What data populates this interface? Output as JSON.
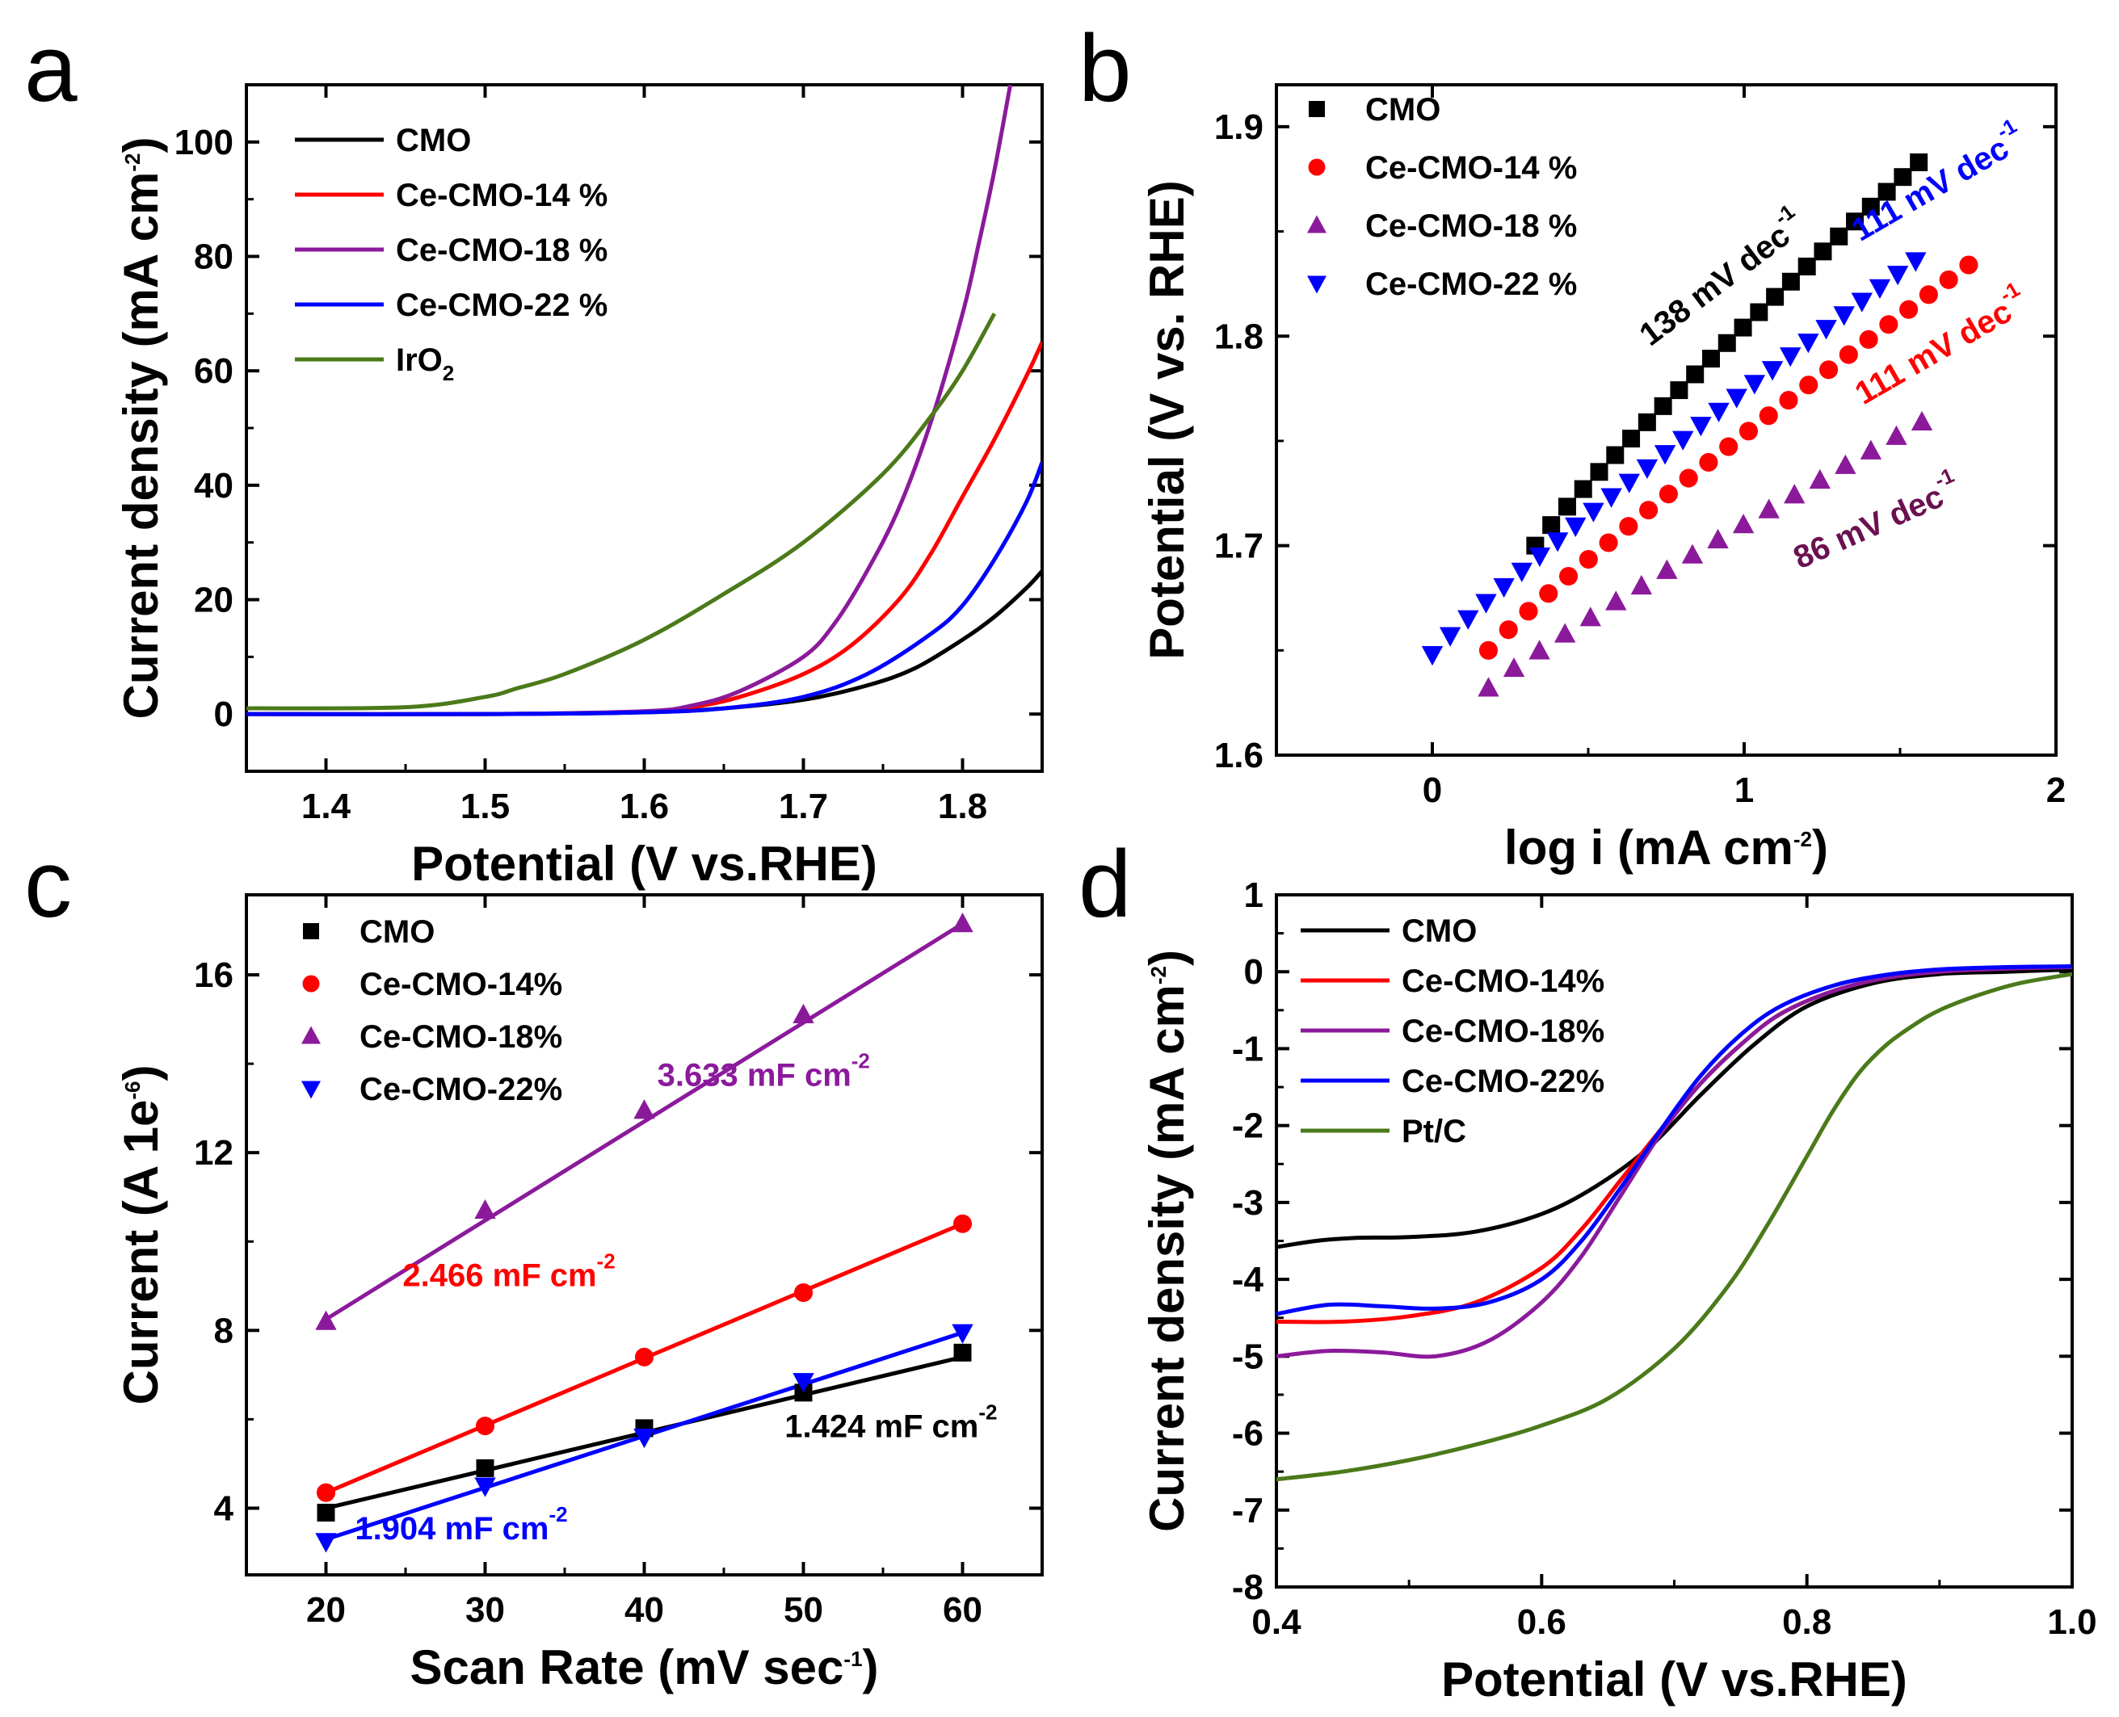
{
  "colors": {
    "black": "#000000",
    "red": "#ff0000",
    "purple": "#8b1a9b",
    "blue": "#0000ff",
    "green": "#4b7a1a",
    "darkpurple": "#6b1150"
  },
  "chart_data": [
    {
      "id": "a",
      "panel_label": "a",
      "type": "line",
      "xlabel": "Potential (V vs.RHE)",
      "ylabel_main": "Current density (mA cm",
      "ylabel_sup": "-2",
      "ylabel_tail": ")",
      "xlim": [
        1.35,
        1.85
      ],
      "ylim": [
        -10,
        110
      ],
      "xticks": [
        "1.4",
        "1.5",
        "1.6",
        "1.7",
        "1.8"
      ],
      "yticks": [
        "0",
        "20",
        "40",
        "60",
        "80",
        "100"
      ],
      "legend": [
        {
          "label": "CMO",
          "color": "#000000"
        },
        {
          "label": "Ce-CMO-14 %",
          "color": "#ff0000"
        },
        {
          "label": "Ce-CMO-18 %",
          "color": "#8b1a9b"
        },
        {
          "label": "Ce-CMO-22 %",
          "color": "#0000ff"
        },
        {
          "label": "IrO",
          "sub": "2",
          "color": "#4b7a1a"
        }
      ],
      "series": [
        {
          "name": "CMO",
          "color": "#000000",
          "x": [
            1.35,
            1.5,
            1.6,
            1.65,
            1.7,
            1.74,
            1.77,
            1.8,
            1.82,
            1.84,
            1.85
          ],
          "y": [
            0,
            0,
            0.3,
            1,
            2.5,
            5,
            8,
            13,
            17,
            22,
            25
          ]
        },
        {
          "name": "Ce-CMO-14 %",
          "color": "#ff0000",
          "x": [
            1.35,
            1.5,
            1.6,
            1.63,
            1.66,
            1.7,
            1.73,
            1.76,
            1.78,
            1.8,
            1.82,
            1.84,
            1.85
          ],
          "y": [
            0,
            0,
            0.4,
            1.2,
            3,
            7,
            12,
            20,
            28,
            38,
            48,
            59,
            65
          ]
        },
        {
          "name": "Ce-CMO-18 %",
          "color": "#8b1a9b",
          "x": [
            1.35,
            1.5,
            1.6,
            1.63,
            1.66,
            1.7,
            1.72,
            1.74,
            1.76,
            1.78,
            1.8,
            1.81,
            1.82,
            1.83
          ],
          "y": [
            0,
            0,
            0.5,
            1.5,
            4,
            10,
            16,
            25,
            36,
            51,
            70,
            82,
            95,
            110
          ]
        },
        {
          "name": "Ce-CMO-22 %",
          "color": "#0000ff",
          "x": [
            1.35,
            1.5,
            1.6,
            1.65,
            1.7,
            1.74,
            1.78,
            1.8,
            1.82,
            1.84,
            1.85
          ],
          "y": [
            0,
            0,
            0.3,
            1,
            3,
            7,
            14,
            19,
            27,
            37,
            44
          ]
        },
        {
          "name": "IrO2",
          "color": "#4b7a1a",
          "x": [
            1.35,
            1.45,
            1.5,
            1.52,
            1.55,
            1.6,
            1.65,
            1.7,
            1.75,
            1.78,
            1.8,
            1.82
          ],
          "y": [
            1,
            1.2,
            3,
            4.5,
            7,
            13,
            21,
            30,
            42,
            52,
            60,
            70
          ]
        }
      ]
    },
    {
      "id": "b",
      "panel_label": "b",
      "type": "scatter",
      "xlabel_main": "log i (mA cm",
      "xlabel_sup": "-2",
      "xlabel_tail": ")",
      "ylabel": "Potential (V vs. RHE)",
      "xlim": [
        -0.5,
        2
      ],
      "ylim": [
        1.6,
        1.92
      ],
      "xticks": [
        "0",
        "1",
        "2"
      ],
      "yticks": [
        "1.6",
        "1.7",
        "1.8",
        "1.9"
      ],
      "legend": [
        {
          "label": "CMO",
          "color": "#000000",
          "marker": "square"
        },
        {
          "label": "Ce-CMO-14 %",
          "color": "#ff0000",
          "marker": "circle"
        },
        {
          "label": "Ce-CMO-18 %",
          "color": "#8b1a9b",
          "marker": "triangle-up"
        },
        {
          "label": "Ce-CMO-22 %",
          "color": "#0000ff",
          "marker": "triangle-down"
        }
      ],
      "series": [
        {
          "name": "CMO",
          "color": "#000000",
          "marker": "square",
          "x_start": 0.33,
          "x_end": 1.56,
          "y_start": 1.7,
          "y_end": 1.883,
          "n": 25
        },
        {
          "name": "Ce-CMO-14 %",
          "color": "#ff0000",
          "marker": "circle",
          "x_start": 0.18,
          "x_end": 1.72,
          "y_start": 1.65,
          "y_end": 1.834,
          "n": 25
        },
        {
          "name": "Ce-CMO-18 %",
          "color": "#8b1a9b",
          "marker": "triangle-up",
          "x_start": 0.18,
          "x_end": 1.57,
          "y_start": 1.632,
          "y_end": 1.759,
          "n": 18
        },
        {
          "name": "Ce-CMO-22 %",
          "color": "#0000ff",
          "marker": "triangle-down",
          "x_start": 0.0,
          "x_end": 1.55,
          "y_start": 1.648,
          "y_end": 1.836,
          "n": 28
        }
      ],
      "annotations": [
        {
          "text": "138 mV dec",
          "sup": "-1",
          "color": "#000000",
          "x": 0.95,
          "y": 1.823,
          "angle": -37
        },
        {
          "text": "111 mV dec",
          "sup": "-1",
          "color": "#0000ff",
          "x": 1.64,
          "y": 1.868,
          "angle": -30
        },
        {
          "text": "111 mV dec",
          "sup": "-1",
          "color": "#ff0000",
          "x": 1.65,
          "y": 1.79,
          "angle": -30
        },
        {
          "text": "86 mV dec",
          "sup": "-1",
          "color": "#6b1150",
          "x": 1.44,
          "y": 1.706,
          "angle": -24
        }
      ]
    },
    {
      "id": "c",
      "panel_label": "c",
      "type": "scatter",
      "xlabel_main": "Scan Rate (mV sec",
      "xlabel_sup": "-1",
      "xlabel_tail": ")",
      "ylabel_main": "Current (A 1e",
      "ylabel_sup": "-6",
      "ylabel_tail": ")",
      "xlim": [
        15,
        65
      ],
      "ylim": [
        2.5,
        17.8
      ],
      "xticks": [
        "20",
        "30",
        "40",
        "50",
        "60"
      ],
      "yticks": [
        "4",
        "8",
        "12",
        "16"
      ],
      "legend": [
        {
          "label": "CMO",
          "color": "#000000",
          "marker": "square"
        },
        {
          "label": "Ce-CMO-14%",
          "color": "#ff0000",
          "marker": "circle"
        },
        {
          "label": "Ce-CMO-18%",
          "color": "#8b1a9b",
          "marker": "triangle-up"
        },
        {
          "label": "Ce-CMO-22%",
          "color": "#0000ff",
          "marker": "triangle-down"
        }
      ],
      "series": [
        {
          "name": "CMO",
          "color": "#000000",
          "marker": "square",
          "x": [
            20,
            30,
            40,
            50,
            60
          ],
          "y": [
            3.9,
            4.9,
            5.8,
            6.6,
            7.5
          ]
        },
        {
          "name": "Ce-CMO-14%",
          "color": "#ff0000",
          "marker": "circle",
          "x": [
            20,
            30,
            40,
            50,
            60
          ],
          "y": [
            4.35,
            5.85,
            7.4,
            8.85,
            10.4
          ]
        },
        {
          "name": "Ce-CMO-18%",
          "color": "#8b1a9b",
          "marker": "triangle-up",
          "x": [
            20,
            30,
            40,
            50,
            60
          ],
          "y": [
            8.2,
            10.7,
            12.95,
            15.1,
            17.15
          ]
        },
        {
          "name": "Ce-CMO-22%",
          "color": "#0000ff",
          "marker": "triangle-down",
          "x": [
            20,
            30,
            40,
            50,
            60
          ],
          "y": [
            3.25,
            4.5,
            5.6,
            6.85,
            7.95
          ]
        }
      ],
      "fits": [
        {
          "name": "CMO",
          "color": "#000000",
          "x": [
            20,
            60
          ],
          "y": [
            4.0,
            7.4
          ]
        },
        {
          "name": "Ce-CMO-14%",
          "color": "#ff0000",
          "x": [
            20,
            60
          ],
          "y": [
            4.35,
            10.4
          ]
        },
        {
          "name": "Ce-CMO-18%",
          "color": "#8b1a9b",
          "x": [
            20,
            60
          ],
          "y": [
            8.25,
            17.15
          ]
        },
        {
          "name": "Ce-CMO-22%",
          "color": "#0000ff",
          "x": [
            20,
            60
          ],
          "y": [
            3.3,
            7.95
          ]
        }
      ],
      "annotations": [
        {
          "text": "3.633 mF cm",
          "sup": "-2",
          "color": "#8b1a9b",
          "x": 47.5,
          "y": 13.5
        },
        {
          "text": "2.466 mF cm",
          "sup": "-2",
          "color": "#ff0000",
          "x": 31.5,
          "y": 9.0
        },
        {
          "text": "1.424 mF cm",
          "sup": "-2",
          "color": "#000000",
          "x": 55.5,
          "y": 5.6
        },
        {
          "text": "1.904 mF cm",
          "sup": "-2",
          "color": "#0000ff",
          "x": 28.5,
          "y": 3.3
        }
      ]
    },
    {
      "id": "d",
      "panel_label": "d",
      "type": "line",
      "xlabel": "Potential (V vs.RHE)",
      "ylabel_main": "Current density (mA cm",
      "ylabel_sup": "-2",
      "ylabel_tail": ")",
      "xlim": [
        0.4,
        1.0
      ],
      "ylim": [
        -8,
        1
      ],
      "xticks": [
        "0.4",
        "0.6",
        "0.8",
        "1.0"
      ],
      "yticks": [
        "-8",
        "-7",
        "-6",
        "-5",
        "-4",
        "-3",
        "-2",
        "-1",
        "0",
        "1"
      ],
      "legend": [
        {
          "label": "CMO",
          "color": "#000000"
        },
        {
          "label": "Ce-CMO-14%",
          "color": "#ff0000"
        },
        {
          "label": "Ce-CMO-18%",
          "color": "#8b1a9b"
        },
        {
          "label": "Ce-CMO-22%",
          "color": "#0000ff"
        },
        {
          "label": "Pt/C",
          "color": "#4b7a1a"
        }
      ],
      "series": [
        {
          "name": "CMO",
          "color": "#000000",
          "x": [
            0.4,
            0.43,
            0.46,
            0.5,
            0.55,
            0.6,
            0.64,
            0.68,
            0.72,
            0.76,
            0.8,
            0.85,
            0.9,
            0.95,
            1.0
          ],
          "y": [
            -3.58,
            -3.5,
            -3.46,
            -3.45,
            -3.38,
            -3.15,
            -2.8,
            -2.3,
            -1.6,
            -0.95,
            -0.45,
            -0.15,
            -0.03,
            0.0,
            0.03
          ]
        },
        {
          "name": "Ce-CMO-14%",
          "color": "#ff0000",
          "x": [
            0.4,
            0.45,
            0.5,
            0.55,
            0.6,
            0.63,
            0.66,
            0.69,
            0.72,
            0.75,
            0.78,
            0.82,
            0.86,
            0.9,
            0.95,
            1.0
          ],
          "y": [
            -4.55,
            -4.55,
            -4.48,
            -4.3,
            -3.85,
            -3.35,
            -2.7,
            -2.05,
            -1.45,
            -0.95,
            -0.55,
            -0.25,
            -0.08,
            0.0,
            0.05,
            0.07
          ]
        },
        {
          "name": "Ce-CMO-18%",
          "color": "#8b1a9b",
          "x": [
            0.4,
            0.44,
            0.48,
            0.52,
            0.56,
            0.6,
            0.63,
            0.66,
            0.69,
            0.72,
            0.75,
            0.78,
            0.82,
            0.86,
            0.9,
            0.95,
            1.0
          ],
          "y": [
            -5.0,
            -4.93,
            -4.95,
            -5.0,
            -4.8,
            -4.3,
            -3.7,
            -2.9,
            -2.1,
            -1.45,
            -0.95,
            -0.55,
            -0.25,
            -0.08,
            0.0,
            0.04,
            0.06
          ]
        },
        {
          "name": "Ce-CMO-22%",
          "color": "#0000ff",
          "x": [
            0.4,
            0.44,
            0.48,
            0.52,
            0.56,
            0.6,
            0.63,
            0.66,
            0.69,
            0.72,
            0.75,
            0.78,
            0.82,
            0.86,
            0.9,
            0.95,
            1.0
          ],
          "y": [
            -4.45,
            -4.33,
            -4.35,
            -4.38,
            -4.3,
            -4.0,
            -3.5,
            -2.8,
            -2.05,
            -1.35,
            -0.82,
            -0.45,
            -0.18,
            -0.04,
            0.03,
            0.06,
            0.07
          ]
        },
        {
          "name": "Pt/C",
          "color": "#4b7a1a",
          "x": [
            0.4,
            0.45,
            0.5,
            0.55,
            0.6,
            0.65,
            0.7,
            0.74,
            0.77,
            0.8,
            0.82,
            0.84,
            0.86,
            0.88,
            0.9,
            0.93,
            0.96,
            1.0
          ],
          "y": [
            -6.6,
            -6.5,
            -6.35,
            -6.15,
            -5.9,
            -5.55,
            -4.9,
            -4.1,
            -3.3,
            -2.4,
            -1.8,
            -1.3,
            -0.95,
            -0.7,
            -0.5,
            -0.3,
            -0.15,
            -0.03
          ]
        }
      ]
    }
  ]
}
